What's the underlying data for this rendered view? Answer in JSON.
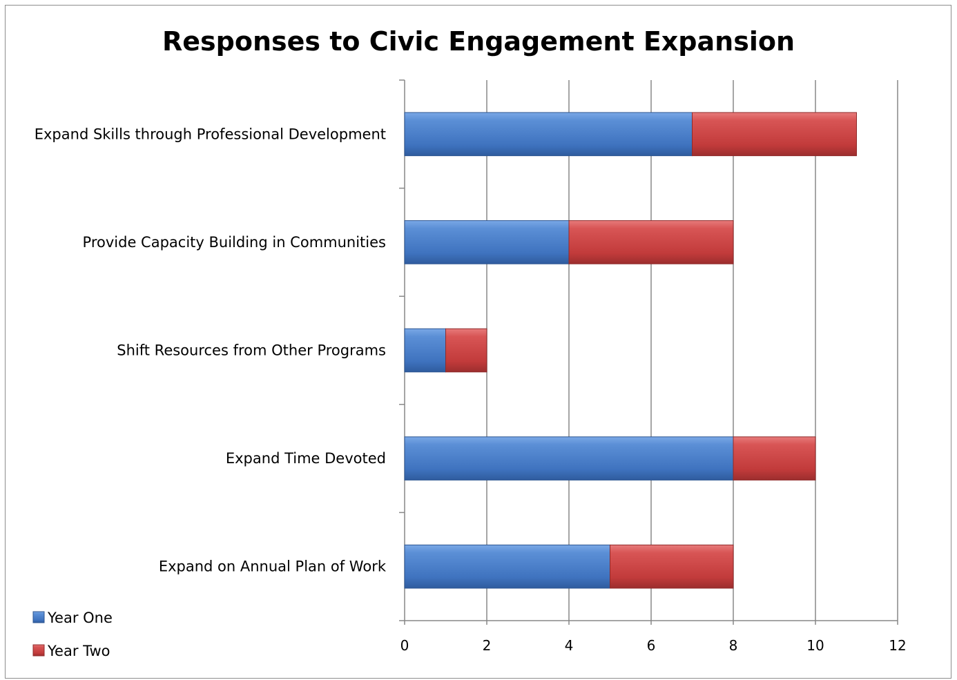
{
  "chart_data": {
    "type": "bar",
    "orientation": "horizontal",
    "stacked": true,
    "title": "Responses to Civic Engagement Expansion",
    "xlabel": "",
    "ylabel": "",
    "categories": [
      "Expand Skills through Professional Development",
      "Provide Capacity Building in Communities",
      "Shift Resources from Other Programs",
      "Expand Time Devoted",
      "Expand on Annual Plan of Work"
    ],
    "series": [
      {
        "name": "Year One",
        "values": [
          7,
          4,
          1,
          8,
          5
        ],
        "color": "#4a7ec4"
      },
      {
        "name": "Year Two",
        "values": [
          4,
          4,
          1,
          2,
          3
        ],
        "color": "#c94343"
      }
    ],
    "xlim": [
      0,
      12
    ],
    "xticks": [
      "0",
      "2",
      "4",
      "6",
      "8",
      "10",
      "12"
    ],
    "grid": true,
    "legend_position": "bottom-left"
  }
}
